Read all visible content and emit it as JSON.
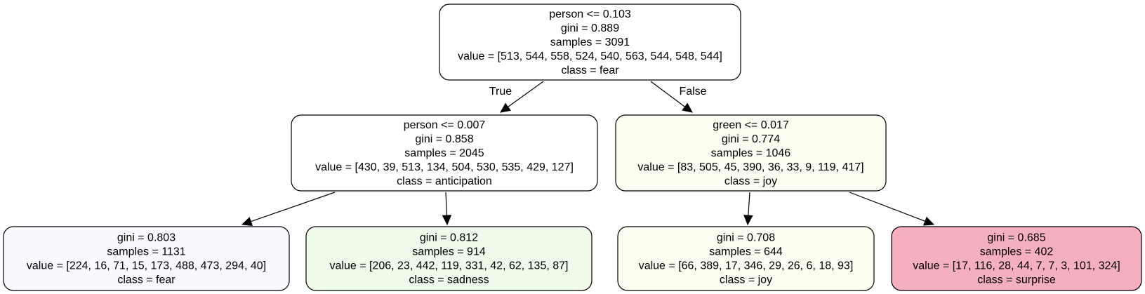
{
  "nodes": [
    {
      "id": "root",
      "fill": "#ffffff",
      "lines": [
        "person <= 0.103",
        "gini = 0.889",
        "samples = 3091",
        "value = [513, 544, 558, 524, 540, 563, 544, 548, 544]",
        "class = fear"
      ]
    },
    {
      "id": "left",
      "fill": "#ffffff",
      "lines": [
        "person <= 0.007",
        "gini = 0.858",
        "samples = 2045",
        "value = [430, 39, 513, 134, 504, 530, 535, 429, 127]",
        "class = anticipation"
      ]
    },
    {
      "id": "right",
      "fill": "#fafdf0",
      "lines": [
        "green <= 0.017",
        "gini = 0.774",
        "samples = 1046",
        "value = [83, 505, 45, 390, 36, 33, 9, 119, 417]",
        "class = joy"
      ]
    },
    {
      "id": "leaf1",
      "fill": "#f9fafe",
      "lines": [
        "gini = 0.803",
        "samples = 1131",
        "value = [224, 16, 71, 15, 173, 488, 473, 294, 40]",
        "class = fear"
      ]
    },
    {
      "id": "leaf2",
      "fill": "#eefbeb",
      "lines": [
        "gini = 0.812",
        "samples = 914",
        "value = [206, 23, 442, 119, 331, 42, 62, 135, 87]",
        "class = sadness"
      ]
    },
    {
      "id": "leaf3",
      "fill": "#fafdef",
      "lines": [
        "gini = 0.708",
        "samples = 644",
        "value = [66, 389, 17, 346, 29, 26, 6, 18, 93]",
        "class = joy"
      ]
    },
    {
      "id": "leaf4",
      "fill": "#f5b0c0",
      "lines": [
        "gini = 0.685",
        "samples = 402",
        "value = [17, 116, 28, 44, 7, 7, 3, 101, 324]",
        "class = surprise"
      ]
    }
  ],
  "edges": [
    {
      "from": "root",
      "to": "left",
      "label": "True"
    },
    {
      "from": "root",
      "to": "right",
      "label": "False"
    },
    {
      "from": "left",
      "to": "leaf1",
      "label": ""
    },
    {
      "from": "left",
      "to": "leaf2",
      "label": ""
    },
    {
      "from": "right",
      "to": "leaf3",
      "label": ""
    },
    {
      "from": "right",
      "to": "leaf4",
      "label": ""
    }
  ]
}
